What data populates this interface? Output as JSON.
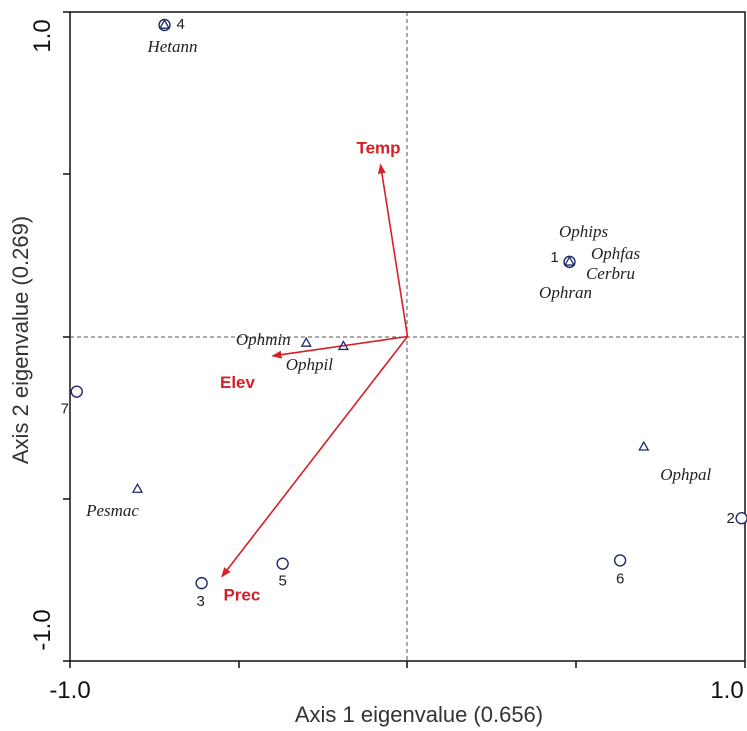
{
  "chart_data": {
    "type": "scatter",
    "xlabel": "Axis 1 eigenvalue (0.656)",
    "ylabel": "Axis 2 eigenvalue (0.269)",
    "xlim": [
      -1.0,
      1.0
    ],
    "ylim": [
      -1.0,
      1.0
    ],
    "x_tick_labels": [
      "-1.0",
      "1.0"
    ],
    "y_tick_labels": [
      "1.0",
      "-1.0"
    ],
    "vector_color": "#d42027",
    "marker_color": "#1f2a6b",
    "sites": [
      {
        "label": "4",
        "x": -0.72,
        "y": 0.96
      },
      {
        "label": "1",
        "x": 0.48,
        "y": 0.23
      },
      {
        "label": "7",
        "x": -0.98,
        "y": -0.17
      },
      {
        "label": "2",
        "x": 0.99,
        "y": -0.56
      },
      {
        "label": "6",
        "x": 0.63,
        "y": -0.69
      },
      {
        "label": "5",
        "x": -0.37,
        "y": -0.7
      },
      {
        "label": "3",
        "x": -0.61,
        "y": -0.76
      }
    ],
    "species": [
      {
        "label": "Hetann",
        "x": -0.72,
        "y": 0.96
      },
      {
        "label": "Ophips",
        "x": 0.48,
        "y": 0.23
      },
      {
        "label": "Ophfas",
        "x": 0.48,
        "y": 0.23
      },
      {
        "label": "Cerbru",
        "x": 0.48,
        "y": 0.23
      },
      {
        "label": "Ophran",
        "x": 0.48,
        "y": 0.23
      },
      {
        "label": "Ophmin",
        "x": -0.3,
        "y": -0.02
      },
      {
        "label": "Ophpil",
        "x": -0.19,
        "y": -0.03
      },
      {
        "label": "Ophpal",
        "x": 0.7,
        "y": -0.34
      },
      {
        "label": "Pesmac",
        "x": -0.8,
        "y": -0.47
      }
    ],
    "vectors": [
      {
        "label": "Temp",
        "x": -0.08,
        "y": 0.53
      },
      {
        "label": "Elev",
        "x": -0.4,
        "y": -0.06
      },
      {
        "label": "Prec",
        "x": -0.55,
        "y": -0.74
      }
    ]
  }
}
